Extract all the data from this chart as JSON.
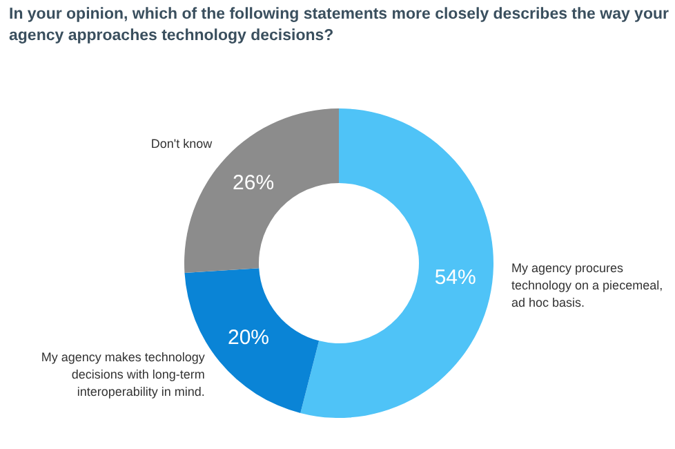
{
  "chart_data": {
    "type": "donut",
    "title": "In your opinion, which of the following statements more closely describes the way your agency approaches technology decisions?",
    "categories": [
      "My agency procures technology on a piecemeal, ad hoc basis.",
      "My agency makes technology decisions with long-term interoperability in mind.",
      "Don't know"
    ],
    "values": [
      54,
      20,
      26
    ],
    "colors": [
      "#4fc3f7",
      "#0a84d6",
      "#8c8c8c"
    ],
    "value_labels": [
      "54%",
      "20%",
      "26%"
    ]
  }
}
